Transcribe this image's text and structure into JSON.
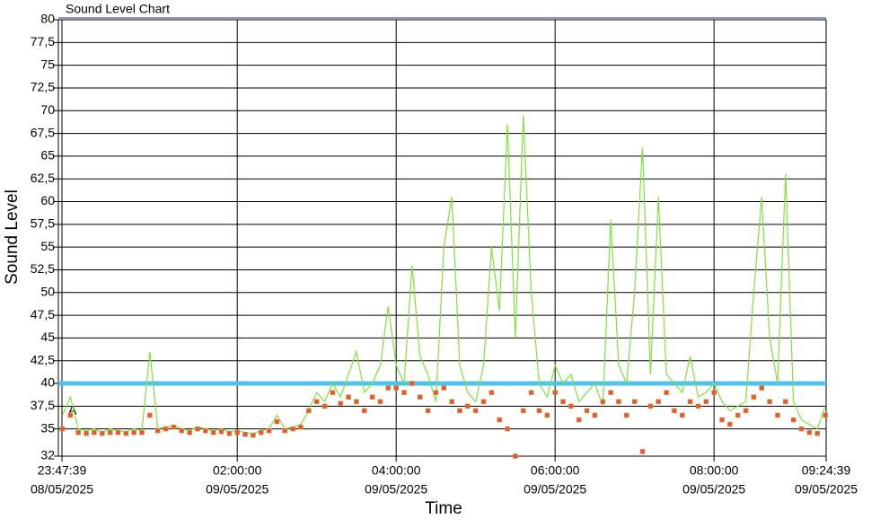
{
  "chart_data": {
    "type": "line",
    "title": "Sound Level Chart",
    "x_label": "Time",
    "y_label": "Sound Level",
    "annotations": [
      {
        "text": "A"
      }
    ],
    "threshold": {
      "value": 40,
      "color": "#4fc3f0"
    },
    "xlim": [
      "2025-05-08T23:47:39",
      "2025-05-09T09:24:39"
    ],
    "xticks": [
      {
        "value": "2025-05-08T23:47:39",
        "label": [
          "23:47:39",
          "08/05/2025"
        ]
      },
      {
        "value": "2025-05-09T02:00:00",
        "label": [
          "02:00:00",
          "09/05/2025"
        ]
      },
      {
        "value": "2025-05-09T04:00:00",
        "label": [
          "04:00:00",
          "09/05/2025"
        ]
      },
      {
        "value": "2025-05-09T06:00:00",
        "label": [
          "06:00:00",
          "09/05/2025"
        ]
      },
      {
        "value": "2025-05-09T08:00:00",
        "label": [
          "08:00:00",
          "09/05/2025"
        ]
      },
      {
        "value": "2025-05-09T09:24:39",
        "label": [
          "09:24:39",
          "09/05/2025"
        ]
      }
    ],
    "ylim": [
      32,
      80
    ],
    "yticks": [
      32,
      35,
      {
        "value": 37.5,
        "label": "37,5"
      },
      40,
      {
        "value": 42.5,
        "label": "42,5"
      },
      45,
      {
        "value": 47.5,
        "label": "47,5"
      },
      50,
      {
        "value": 52.5,
        "label": "52,5"
      },
      55,
      {
        "value": 57.5,
        "label": "57,5"
      },
      60,
      {
        "value": 62.5,
        "label": "62,5"
      },
      65,
      {
        "value": 67.5,
        "label": "67,5"
      },
      70,
      {
        "value": 72.5,
        "label": "72,5"
      },
      75,
      {
        "value": 77.5,
        "label": "77,5"
      },
      80
    ],
    "grid": true,
    "x": [
      "2025-05-08T23:48:00",
      "2025-05-08T23:54:00",
      "2025-05-09T00:00:00",
      "2025-05-09T00:06:00",
      "2025-05-09T00:12:00",
      "2025-05-09T00:18:00",
      "2025-05-09T00:24:00",
      "2025-05-09T00:30:00",
      "2025-05-09T00:36:00",
      "2025-05-09T00:42:00",
      "2025-05-09T00:48:00",
      "2025-05-09T00:54:00",
      "2025-05-09T01:00:00",
      "2025-05-09T01:06:00",
      "2025-05-09T01:12:00",
      "2025-05-09T01:18:00",
      "2025-05-09T01:24:00",
      "2025-05-09T01:30:00",
      "2025-05-09T01:36:00",
      "2025-05-09T01:42:00",
      "2025-05-09T01:48:00",
      "2025-05-09T01:54:00",
      "2025-05-09T02:00:00",
      "2025-05-09T02:06:00",
      "2025-05-09T02:12:00",
      "2025-05-09T02:18:00",
      "2025-05-09T02:24:00",
      "2025-05-09T02:30:00",
      "2025-05-09T02:36:00",
      "2025-05-09T02:42:00",
      "2025-05-09T02:48:00",
      "2025-05-09T02:54:00",
      "2025-05-09T03:00:00",
      "2025-05-09T03:06:00",
      "2025-05-09T03:12:00",
      "2025-05-09T03:18:00",
      "2025-05-09T03:24:00",
      "2025-05-09T03:30:00",
      "2025-05-09T03:36:00",
      "2025-05-09T03:42:00",
      "2025-05-09T03:48:00",
      "2025-05-09T03:54:00",
      "2025-05-09T04:00:00",
      "2025-05-09T04:06:00",
      "2025-05-09T04:12:00",
      "2025-05-09T04:18:00",
      "2025-05-09T04:24:00",
      "2025-05-09T04:30:00",
      "2025-05-09T04:36:00",
      "2025-05-09T04:42:00",
      "2025-05-09T04:48:00",
      "2025-05-09T04:54:00",
      "2025-05-09T05:00:00",
      "2025-05-09T05:06:00",
      "2025-05-09T05:12:00",
      "2025-05-09T05:18:00",
      "2025-05-09T05:24:00",
      "2025-05-09T05:30:00",
      "2025-05-09T05:36:00",
      "2025-05-09T05:42:00",
      "2025-05-09T05:48:00",
      "2025-05-09T05:54:00",
      "2025-05-09T06:00:00",
      "2025-05-09T06:06:00",
      "2025-05-09T06:12:00",
      "2025-05-09T06:18:00",
      "2025-05-09T06:24:00",
      "2025-05-09T06:30:00",
      "2025-05-09T06:36:00",
      "2025-05-09T06:42:00",
      "2025-05-09T06:48:00",
      "2025-05-09T06:54:00",
      "2025-05-09T07:00:00",
      "2025-05-09T07:06:00",
      "2025-05-09T07:12:00",
      "2025-05-09T07:18:00",
      "2025-05-09T07:24:00",
      "2025-05-09T07:30:00",
      "2025-05-09T07:36:00",
      "2025-05-09T07:42:00",
      "2025-05-09T07:48:00",
      "2025-05-09T07:54:00",
      "2025-05-09T08:00:00",
      "2025-05-09T08:06:00",
      "2025-05-09T08:12:00",
      "2025-05-09T08:18:00",
      "2025-05-09T08:24:00",
      "2025-05-09T08:30:00",
      "2025-05-09T08:36:00",
      "2025-05-09T08:42:00",
      "2025-05-09T08:48:00",
      "2025-05-09T08:54:00",
      "2025-05-09T09:00:00",
      "2025-05-09T09:06:00",
      "2025-05-09T09:12:00",
      "2025-05-09T09:18:00",
      "2025-05-09T09:24:00"
    ],
    "series": [
      {
        "color": "#7ee23c",
        "style": "line",
        "values": [
          36.5,
          38.5,
          35,
          34.8,
          35,
          34.6,
          35,
          34.8,
          34.7,
          35,
          34.8,
          43.5,
          35,
          35.2,
          35.4,
          35,
          34.8,
          35.2,
          35,
          34.8,
          35,
          34.7,
          34.8,
          34.6,
          34.5,
          34.8,
          35,
          36.5,
          35,
          35.2,
          35.5,
          37,
          39,
          38,
          40,
          38.5,
          41,
          43.5,
          39,
          40,
          42,
          48.5,
          42,
          40,
          53,
          43,
          41,
          38,
          55,
          60.5,
          42,
          39,
          38,
          42,
          55,
          48,
          68.5,
          45,
          69.5,
          50,
          40,
          38.5,
          42,
          40,
          41,
          38,
          39,
          40,
          37.5,
          58,
          42,
          40,
          50,
          66,
          41,
          60.5,
          41,
          40,
          39,
          43,
          38.5,
          39,
          40,
          38,
          37,
          37.5,
          38,
          50,
          60.5,
          45,
          40,
          63,
          38,
          36,
          35.5,
          35,
          37.5
        ]
      },
      {
        "color": "#e8553a",
        "style": "markers",
        "values": [
          35,
          36.5,
          34.6,
          34.5,
          34.6,
          34.5,
          34.6,
          34.6,
          34.5,
          34.6,
          34.6,
          36.5,
          34.8,
          35,
          35.2,
          34.8,
          34.6,
          35,
          34.8,
          34.6,
          34.7,
          34.5,
          34.6,
          34.4,
          34.3,
          34.6,
          34.8,
          35.8,
          34.8,
          35,
          35.2,
          37,
          38,
          37.5,
          39,
          37.8,
          38.5,
          38,
          37,
          38.5,
          38,
          39.5,
          39.5,
          39,
          40,
          38.5,
          37,
          39,
          39.5,
          38,
          37,
          37.5,
          37,
          38,
          39,
          36,
          35,
          32,
          37,
          39,
          37,
          36.5,
          39,
          38,
          37.5,
          36,
          37,
          36.5,
          38,
          39,
          38,
          36.5,
          38,
          32.5,
          37.5,
          38,
          39,
          37,
          36.5,
          38,
          37.5,
          38,
          39,
          36,
          35.5,
          36.5,
          37,
          38.5,
          39.5,
          38,
          36.5,
          38,
          36,
          35,
          34.6,
          34.5,
          36.5
        ]
      }
    ]
  }
}
